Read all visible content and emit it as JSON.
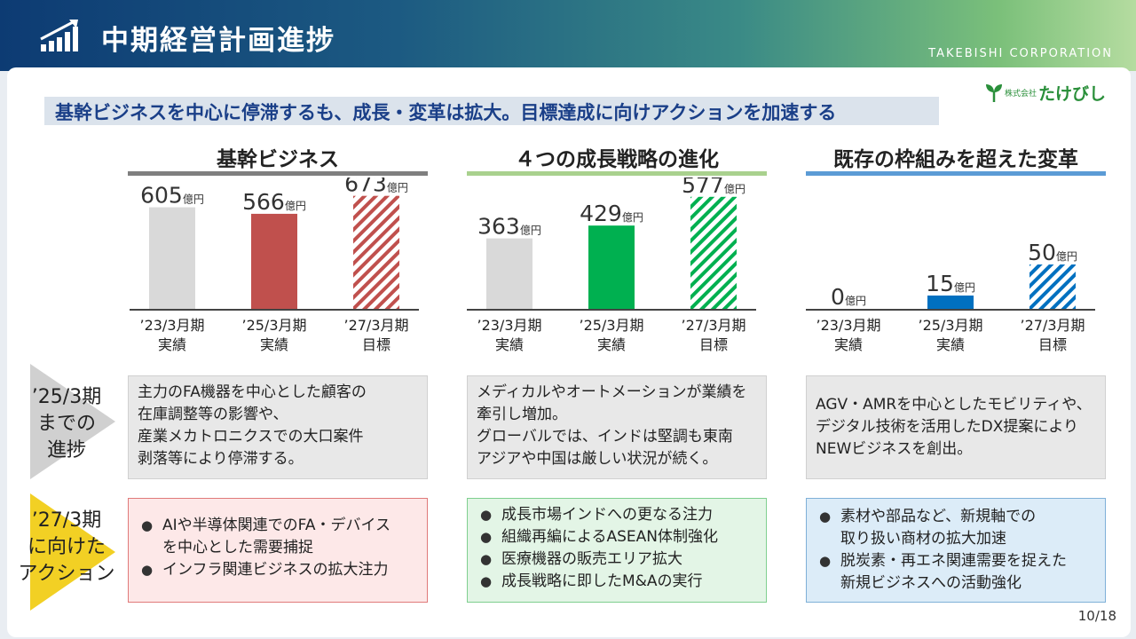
{
  "header": {
    "title": "中期経営計画進捗",
    "corporation": "TAKEBISHI CORPORATION"
  },
  "headline": "基幹ビジネスを中心に停滞するも、成長・変革は拡大。目標達成に向けアクションを加速する",
  "brand": {
    "prefix": "株式会社",
    "name": "たけびし"
  },
  "colors": {
    "grey_bar": "#d9d9d9",
    "core_bar": "#c0504d",
    "growth_bar": "#00b050",
    "transform_bar": "#0070c0",
    "core_rule": "#7f7f7f",
    "growth_rule": "#a9d18e",
    "transform_rule": "#5b9bd5"
  },
  "chart_data": [
    {
      "type": "bar",
      "title": "基幹ビジネス",
      "categories": [
        "’23/3月期\n実績",
        "’25/3月期\n実績",
        "’27/3月期\n目標"
      ],
      "values": [
        605,
        566,
        673
      ],
      "unit": "億円",
      "ylim": [
        0,
        740
      ],
      "styles": [
        "grey",
        "solid",
        "hatched"
      ]
    },
    {
      "type": "bar",
      "title": "４つの成長戦略の進化",
      "categories": [
        "’23/3月期\n実績",
        "’25/3月期\n実績",
        "’27/3月期\n目標"
      ],
      "values": [
        363,
        429,
        577
      ],
      "unit": "億円",
      "ylim": [
        0,
        640
      ],
      "styles": [
        "grey",
        "solid",
        "hatched"
      ]
    },
    {
      "type": "bar",
      "title": "既存の枠組みを超えた変革",
      "categories": [
        "’23/3月期\n実績",
        "’25/3月期\n実績",
        "’27/3月期\n目標"
      ],
      "values": [
        0,
        15,
        50
      ],
      "unit": "億円",
      "ylim": [
        0,
        140
      ],
      "styles": [
        "grey",
        "solid",
        "hatched"
      ]
    }
  ],
  "rows": {
    "progress_label": [
      "’25/3期",
      "までの",
      "進捗"
    ],
    "action_label": [
      "’27/3期",
      "に向けた",
      "アクション"
    ]
  },
  "progress": [
    [
      "主力のFA機器を中心とした顧客の",
      "在庫調整等の影響や、",
      "産業メカトロニクスでの大口案件",
      "剥落等により停滞する。"
    ],
    [
      "メディカルやオートメーションが業績を",
      "牽引し増加。",
      "グローバルでは、インドは堅調も東南",
      "アジアや中国は厳しい状況が続く。"
    ],
    [
      "AGV・AMRを中心としたモビリティや、",
      "デジタル技術を活用したDX提案により",
      "NEWビジネスを創出。"
    ]
  ],
  "actions": [
    [
      [
        "AIや半導体関連でのFA・デバイス",
        "を中心とした需要捕捉"
      ],
      [
        "インフラ関連ビジネスの拡大注力"
      ]
    ],
    [
      [
        "成長市場インドへの更なる注力"
      ],
      [
        "組織再編によるASEAN体制強化"
      ],
      [
        "医療機器の販売エリア拡大"
      ],
      [
        "成長戦略に即したM&Aの実行"
      ]
    ],
    [
      [
        "素材や部品など、新規軸での",
        "取り扱い商材の拡大加速"
      ],
      [
        "脱炭素・再エネ関連需要を捉えた",
        "新規ビジネスへの活動強化"
      ]
    ]
  ],
  "page_number": "10/18"
}
